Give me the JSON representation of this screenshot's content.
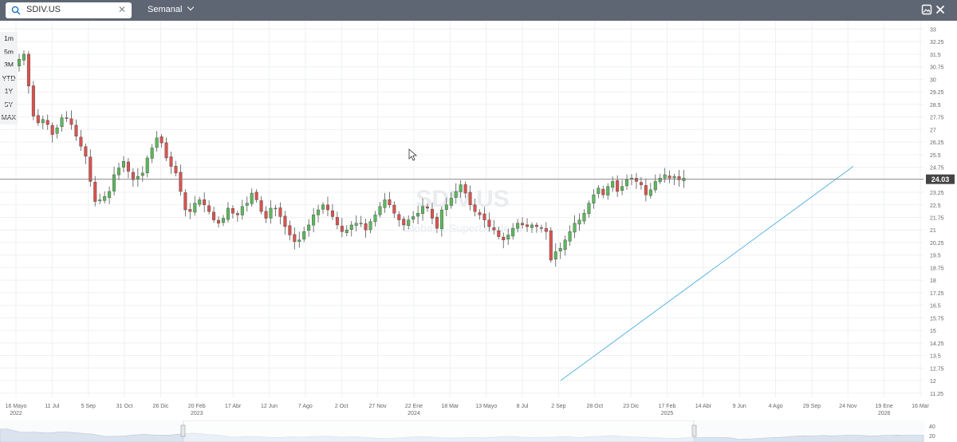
{
  "toolbar": {
    "search_value": "SDIV.US",
    "period_label": "Semanal",
    "icons": [
      "search-icon",
      "clear-icon",
      "chevron-down-icon",
      "image-icon",
      "close-icon"
    ]
  },
  "range_buttons": [
    "1m",
    "5m",
    "3M",
    "YTD",
    "1Y",
    "5Y",
    "MAX"
  ],
  "watermark": {
    "ticker": "SDIV.US",
    "name": "Global X SuperDividend"
  },
  "last_price_label": "24.03",
  "navigator": {
    "volume_ticks": [
      "40",
      "20"
    ]
  },
  "colors": {
    "up": "#5cb85c",
    "down": "#d9534f",
    "trendline": "#5ab4e0",
    "toolbar": "#5f6673"
  },
  "chart_data": {
    "type": "candlestick",
    "y_ticks": [
      "33",
      "32.25",
      "31.5",
      "30.75",
      "30",
      "29.25",
      "28.5",
      "27.75",
      "27",
      "26.25",
      "25.5",
      "24.75",
      "24",
      "23.25",
      "22.5",
      "21.75",
      "21",
      "20.25",
      "19.5",
      "18.75",
      "18",
      "17.25",
      "16.5",
      "15.75",
      "15",
      "14.25",
      "13.5",
      "12.75",
      "12",
      "11.25"
    ],
    "ylim": [
      11,
      33.5
    ],
    "x_ticks": [
      {
        "label": "16 Mayo",
        "sub": "2022"
      },
      {
        "label": "11 Jul",
        "sub": ""
      },
      {
        "label": "5 Sep",
        "sub": ""
      },
      {
        "label": "31 Oct",
        "sub": ""
      },
      {
        "label": "26 Dic",
        "sub": ""
      },
      {
        "label": "20 Feb",
        "sub": "2023"
      },
      {
        "label": "17 Abr",
        "sub": ""
      },
      {
        "label": "12 Jun",
        "sub": ""
      },
      {
        "label": "7 Ago",
        "sub": ""
      },
      {
        "label": "2 Oct",
        "sub": ""
      },
      {
        "label": "27 Nov",
        "sub": ""
      },
      {
        "label": "22 Ene",
        "sub": "2024"
      },
      {
        "label": "18 Mar",
        "sub": ""
      },
      {
        "label": "13 Mayo",
        "sub": ""
      },
      {
        "label": "8 Jul",
        "sub": ""
      },
      {
        "label": "2 Sep",
        "sub": ""
      },
      {
        "label": "28 Oct",
        "sub": ""
      },
      {
        "label": "23 Dic",
        "sub": ""
      },
      {
        "label": "17 Feb",
        "sub": "2025"
      },
      {
        "label": "14 Abr",
        "sub": ""
      },
      {
        "label": "9 Jun",
        "sub": ""
      },
      {
        "label": "4 Ago",
        "sub": ""
      },
      {
        "label": "29 Sep",
        "sub": ""
      },
      {
        "label": "24 Nov",
        "sub": ""
      },
      {
        "label": "19 Ene",
        "sub": "2026"
      },
      {
        "label": "16 Mar",
        "sub": ""
      }
    ],
    "x_range": [
      0,
      200
    ],
    "last_price": 24.03,
    "closes": [
      31.2,
      31.5,
      29.6,
      27.8,
      27.4,
      27.6,
      27.3,
      26.7,
      27.1,
      27.7,
      27.7,
      27.3,
      26.6,
      26.0,
      25.4,
      23.9,
      22.7,
      22.8,
      23.0,
      23.3,
      24.3,
      24.7,
      25.1,
      24.5,
      24.0,
      24.2,
      24.4,
      25.3,
      25.9,
      26.5,
      26.2,
      25.3,
      24.8,
      24.4,
      23.3,
      22.2,
      22.1,
      22.6,
      22.8,
      22.5,
      22.1,
      21.6,
      21.4,
      21.7,
      22.3,
      22.0,
      21.9,
      22.4,
      22.6,
      23.2,
      22.8,
      22.1,
      21.7,
      22.3,
      22.3,
      21.8,
      21.2,
      20.7,
      20.3,
      20.4,
      20.9,
      21.3,
      21.9,
      22.2,
      22.5,
      22.2,
      21.8,
      21.3,
      20.9,
      21.0,
      21.3,
      21.4,
      21.4,
      21.0,
      21.5,
      21.9,
      22.4,
      22.8,
      22.5,
      22.0,
      21.6,
      21.3,
      21.6,
      21.8,
      22.0,
      22.4,
      22.3,
      21.7,
      21.1,
      22.2,
      22.5,
      22.9,
      23.3,
      23.7,
      23.2,
      22.5,
      22.1,
      21.9,
      21.6,
      21.2,
      21.0,
      20.6,
      20.4,
      20.7,
      21.1,
      21.4,
      21.3,
      21.2,
      21.3,
      21.2,
      21.1,
      20.9,
      19.2,
      19.7,
      19.9,
      20.4,
      20.9,
      21.4,
      21.6,
      22.0,
      22.6,
      23.1,
      23.5,
      23.1,
      23.6,
      23.9,
      23.3,
      23.6,
      24.0,
      24.1,
      23.9,
      23.7,
      23.1,
      23.4,
      23.9,
      24.1,
      24.3,
      24.1,
      24.2,
      24.0,
      24.1
    ]
  }
}
